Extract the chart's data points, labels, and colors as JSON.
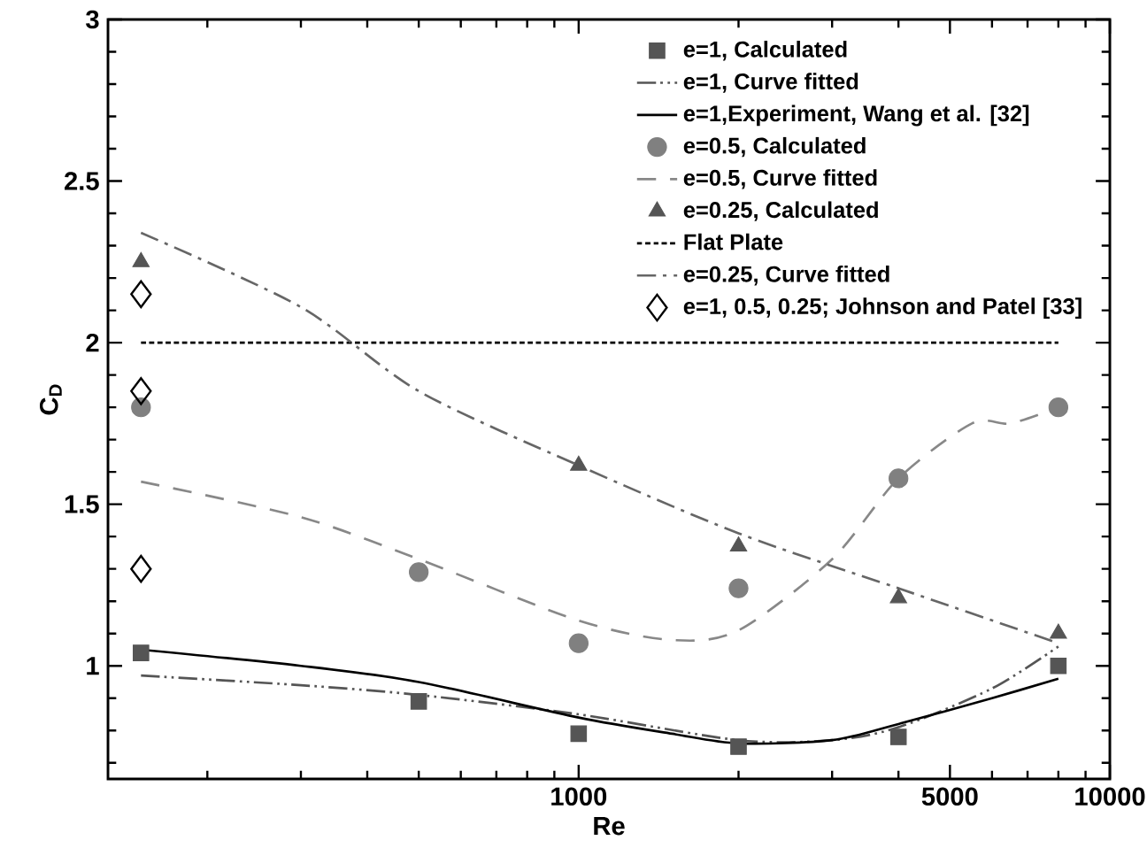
{
  "chart_data": {
    "type": "scatter",
    "xlabel": "Re",
    "ylabel": "C$_{D}$",
    "log": "x",
    "xlim": [
      130,
      10000
    ],
    "ylim": [
      0.65,
      3
    ],
    "xticks": [
      {
        "value": 200,
        "label": null
      },
      {
        "value": 300,
        "label": null
      },
      {
        "value": 400,
        "label": null
      },
      {
        "value": 500,
        "label": null
      },
      {
        "value": 600,
        "label": null
      },
      {
        "value": 700,
        "label": null
      },
      {
        "value": 800,
        "label": null
      },
      {
        "value": 900,
        "label": null
      },
      1000,
      {
        "value": 2000,
        "label": null
      },
      {
        "value": 3000,
        "label": null
      },
      {
        "value": 4000,
        "label": null
      },
      5000,
      {
        "value": 6000,
        "label": null
      },
      {
        "value": 7000,
        "label": null
      },
      {
        "value": 8000,
        "label": null
      },
      {
        "value": 9000,
        "label": null
      },
      10000
    ],
    "yticks": [
      {
        "value": 0.7,
        "label": null
      },
      {
        "value": 0.8,
        "label": null
      },
      {
        "value": 0.9,
        "label": null
      },
      1,
      {
        "value": 1.1,
        "label": null
      },
      {
        "value": 1.2,
        "label": null
      },
      {
        "value": 1.3,
        "label": null
      },
      {
        "value": 1.4,
        "label": null
      },
      1.5,
      {
        "value": 1.6,
        "label": null
      },
      {
        "value": 1.7,
        "label": null
      },
      {
        "value": 1.8,
        "label": null
      },
      {
        "value": 1.9,
        "label": null
      },
      2,
      {
        "value": 2.1,
        "label": null
      },
      {
        "value": 2.2,
        "label": null
      },
      {
        "value": 2.3,
        "label": null
      },
      {
        "value": 2.4,
        "label": null
      },
      2.5,
      {
        "value": 2.6,
        "label": null
      },
      {
        "value": 2.7,
        "label": null
      },
      {
        "value": 2.8,
        "label": null
      },
      {
        "value": 2.9,
        "label": null
      },
      3
    ],
    "grid": false,
    "legend": "top right",
    "series": [
      {
        "name": "e=1, Calculated",
        "marker": "square",
        "color": "#555555",
        "x": [
          150,
          500,
          1000,
          2000,
          4000,
          8000
        ],
        "values": [
          1.04,
          0.89,
          0.79,
          0.75,
          0.78,
          1.0
        ]
      },
      {
        "name": "e=1, Curve fitted",
        "type": "line",
        "line_style": "dashdotdot",
        "color": "#555555",
        "x": [
          150,
          300,
          500,
          1000,
          2000,
          3000,
          4000,
          6000,
          8000
        ],
        "values": [
          0.97,
          0.94,
          0.91,
          0.85,
          0.77,
          0.77,
          0.81,
          0.93,
          1.06
        ]
      },
      {
        "name": "e=1,Experiment, Wang et al. [32]",
        "type": "line",
        "line_style": "solid",
        "color": "#000000",
        "x": [
          150,
          300,
          500,
          1000,
          1500,
          2000,
          3000,
          4000,
          6000,
          8000
        ],
        "values": [
          1.05,
          1.0,
          0.95,
          0.84,
          0.79,
          0.76,
          0.77,
          0.82,
          0.9,
          0.96
        ]
      },
      {
        "name": "e=0.5, Calculated",
        "marker": "circle",
        "color": "#808080",
        "x": [
          150,
          500,
          1000,
          2000,
          4000,
          8000
        ],
        "values": [
          1.8,
          1.29,
          1.07,
          1.24,
          1.58,
          1.8
        ]
      },
      {
        "name": "e=0.5, Curve fitted",
        "type": "line",
        "line_style": "dashed",
        "color": "#888888",
        "x": [
          150,
          300,
          500,
          1000,
          1500,
          2000,
          3000,
          4000,
          5500,
          6500,
          8000
        ],
        "values": [
          1.57,
          1.46,
          1.33,
          1.14,
          1.08,
          1.11,
          1.33,
          1.58,
          1.75,
          1.75,
          1.8
        ]
      },
      {
        "name": "e=0.25, Calculated",
        "marker": "triangle",
        "color": "#555555",
        "x": [
          150,
          1000,
          2000,
          4000,
          8000
        ],
        "values": [
          2.25,
          1.62,
          1.37,
          1.21,
          1.1
        ]
      },
      {
        "name": "Flat Plate",
        "type": "line",
        "line_style": "dotted",
        "color": "#000000",
        "x": [
          150,
          8000
        ],
        "values": [
          2.0,
          2.0
        ]
      },
      {
        "name": "e=0.25, Curve fitted",
        "type": "line",
        "line_style": "dashdot",
        "color": "#666666",
        "x": [
          150,
          300,
          500,
          1000,
          2000,
          4000,
          8000
        ],
        "values": [
          2.34,
          2.11,
          1.85,
          1.62,
          1.41,
          1.24,
          1.07
        ]
      },
      {
        "name": "e=1, 0.5, 0.25; Johnson and Patel [33]",
        "marker": "diamond",
        "color": "#000000",
        "x": [
          150,
          150,
          150
        ],
        "values": [
          2.15,
          1.85,
          1.3
        ]
      }
    ]
  }
}
